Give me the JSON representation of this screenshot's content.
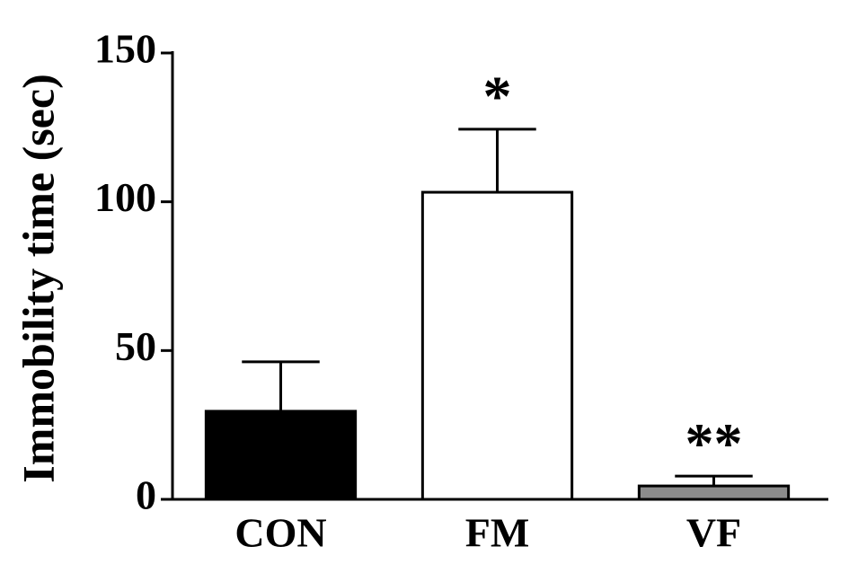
{
  "chart_data": {
    "type": "bar",
    "ylabel": "Immobility time (sec)",
    "categories": [
      "CON",
      "FM",
      "VF"
    ],
    "values": [
      29.6,
      103.2,
      4.5
    ],
    "errors": [
      16.6,
      21.2,
      3.3
    ],
    "colors": [
      "#000000",
      "#ffffff",
      "#8c8c8c"
    ],
    "significance": [
      null,
      "*",
      "**"
    ],
    "ylim": [
      0,
      150
    ],
    "yticks": [
      0,
      50,
      100,
      150
    ],
    "grid": false
  }
}
